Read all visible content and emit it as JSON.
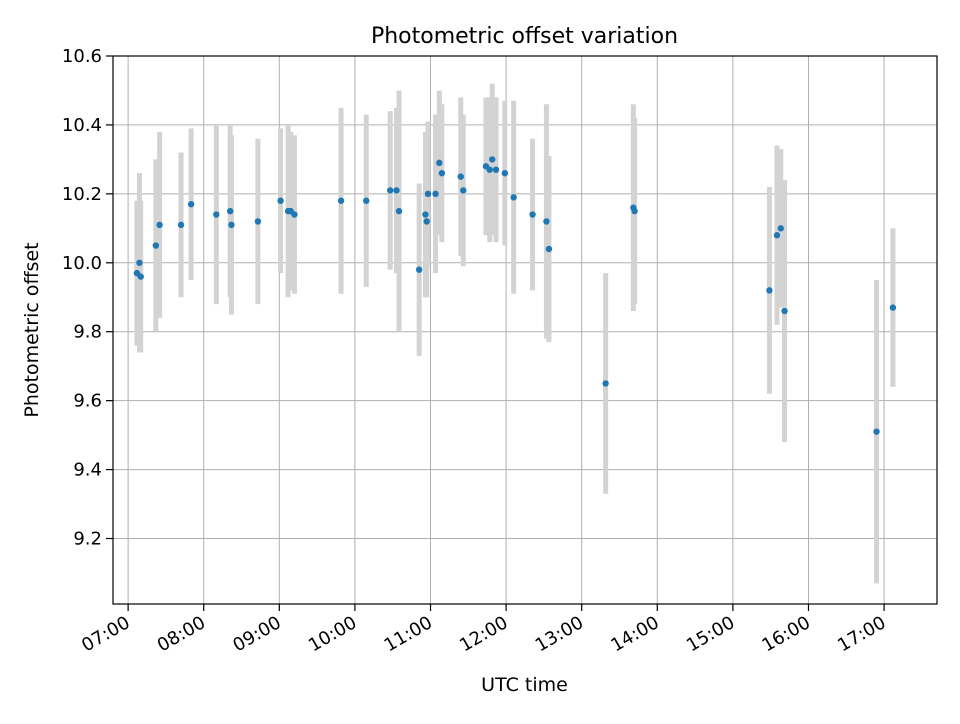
{
  "chart_data": {
    "type": "scatter",
    "title": "Photometric offset variation",
    "xlabel": "UTC time",
    "ylabel": "Photometric offset",
    "xlim": [
      "06:48",
      "17:42"
    ],
    "ylim": [
      9.01,
      10.6
    ],
    "xticks": [
      "07:00",
      "08:00",
      "09:00",
      "10:00",
      "11:00",
      "12:00",
      "13:00",
      "14:00",
      "15:00",
      "16:00",
      "17:00"
    ],
    "yticks": [
      "9.2",
      "9.4",
      "9.6",
      "9.8",
      "10.0",
      "10.2",
      "10.4",
      "10.6"
    ],
    "grid": true,
    "colors": {
      "point": "#1f77b4",
      "errorbar": "#d3d3d3",
      "grid": "#b0b0b0"
    },
    "series": [
      {
        "points": [
          {
            "x": "07:07",
            "y": 9.97,
            "err": 0.21
          },
          {
            "x": "07:09",
            "y": 10.0,
            "err": 0.26
          },
          {
            "x": "07:10",
            "y": 9.96,
            "err": 0.22
          },
          {
            "x": "07:22",
            "y": 10.05,
            "err": 0.25
          },
          {
            "x": "07:25",
            "y": 10.11,
            "err": 0.27
          },
          {
            "x": "07:42",
            "y": 10.11,
            "err": 0.21
          },
          {
            "x": "07:50",
            "y": 10.17,
            "err": 0.22
          },
          {
            "x": "08:10",
            "y": 10.14,
            "err": 0.26
          },
          {
            "x": "08:21",
            "y": 10.15,
            "err": 0.25
          },
          {
            "x": "08:22",
            "y": 10.11,
            "err": 0.26
          },
          {
            "x": "08:43",
            "y": 10.12,
            "err": 0.24
          },
          {
            "x": "09:01",
            "y": 10.18,
            "err": 0.21
          },
          {
            "x": "09:07",
            "y": 10.15,
            "err": 0.25
          },
          {
            "x": "09:09",
            "y": 10.15,
            "err": 0.23
          },
          {
            "x": "09:12",
            "y": 10.14,
            "err": 0.23
          },
          {
            "x": "09:49",
            "y": 10.18,
            "err": 0.27
          },
          {
            "x": "10:09",
            "y": 10.18,
            "err": 0.25
          },
          {
            "x": "10:28",
            "y": 10.21,
            "err": 0.23
          },
          {
            "x": "10:33",
            "y": 10.21,
            "err": 0.24
          },
          {
            "x": "10:35",
            "y": 10.15,
            "err": 0.35
          },
          {
            "x": "10:51",
            "y": 9.98,
            "err": 0.25
          },
          {
            "x": "10:56",
            "y": 10.14,
            "err": 0.24
          },
          {
            "x": "10:57",
            "y": 10.12,
            "err": 0.22
          },
          {
            "x": "10:58",
            "y": 10.2,
            "err": 0.21
          },
          {
            "x": "11:04",
            "y": 10.2,
            "err": 0.23
          },
          {
            "x": "11:07",
            "y": 10.29,
            "err": 0.21
          },
          {
            "x": "11:09",
            "y": 10.26,
            "err": 0.2
          },
          {
            "x": "11:24",
            "y": 10.25,
            "err": 0.23
          },
          {
            "x": "11:26",
            "y": 10.21,
            "err": 0.22
          },
          {
            "x": "11:44",
            "y": 10.28,
            "err": 0.2
          },
          {
            "x": "11:47",
            "y": 10.27,
            "err": 0.21
          },
          {
            "x": "11:49",
            "y": 10.3,
            "err": 0.22
          },
          {
            "x": "11:52",
            "y": 10.27,
            "err": 0.21
          },
          {
            "x": "11:59",
            "y": 10.26,
            "err": 0.21
          },
          {
            "x": "12:06",
            "y": 10.19,
            "err": 0.28
          },
          {
            "x": "12:21",
            "y": 10.14,
            "err": 0.22
          },
          {
            "x": "12:32",
            "y": 10.12,
            "err": 0.34
          },
          {
            "x": "12:34",
            "y": 10.04,
            "err": 0.27
          },
          {
            "x": "13:19",
            "y": 9.65,
            "err": 0.32
          },
          {
            "x": "13:41",
            "y": 10.16,
            "err": 0.3
          },
          {
            "x": "13:42",
            "y": 10.15,
            "err": 0.27
          },
          {
            "x": "15:29",
            "y": 9.92,
            "err": 0.3
          },
          {
            "x": "15:35",
            "y": 10.08,
            "err": 0.26
          },
          {
            "x": "15:38",
            "y": 10.1,
            "err": 0.23
          },
          {
            "x": "15:41",
            "y": 9.86,
            "err": 0.38
          },
          {
            "x": "16:54",
            "y": 9.51,
            "err": 0.44
          },
          {
            "x": "17:07",
            "y": 9.87,
            "err": 0.23
          }
        ]
      }
    ]
  }
}
